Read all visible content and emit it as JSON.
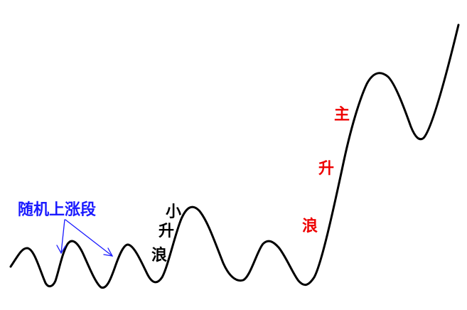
{
  "labels": {
    "random_rise": "随机上涨段",
    "small_rise": [
      "小",
      "升",
      "浪"
    ],
    "main_rise": [
      "主",
      "升",
      "浪"
    ]
  },
  "colors": {
    "curve": "#000000",
    "random_rise": "#1a1aff",
    "small_rise": "#000000",
    "main_rise": "#ee0000"
  }
}
